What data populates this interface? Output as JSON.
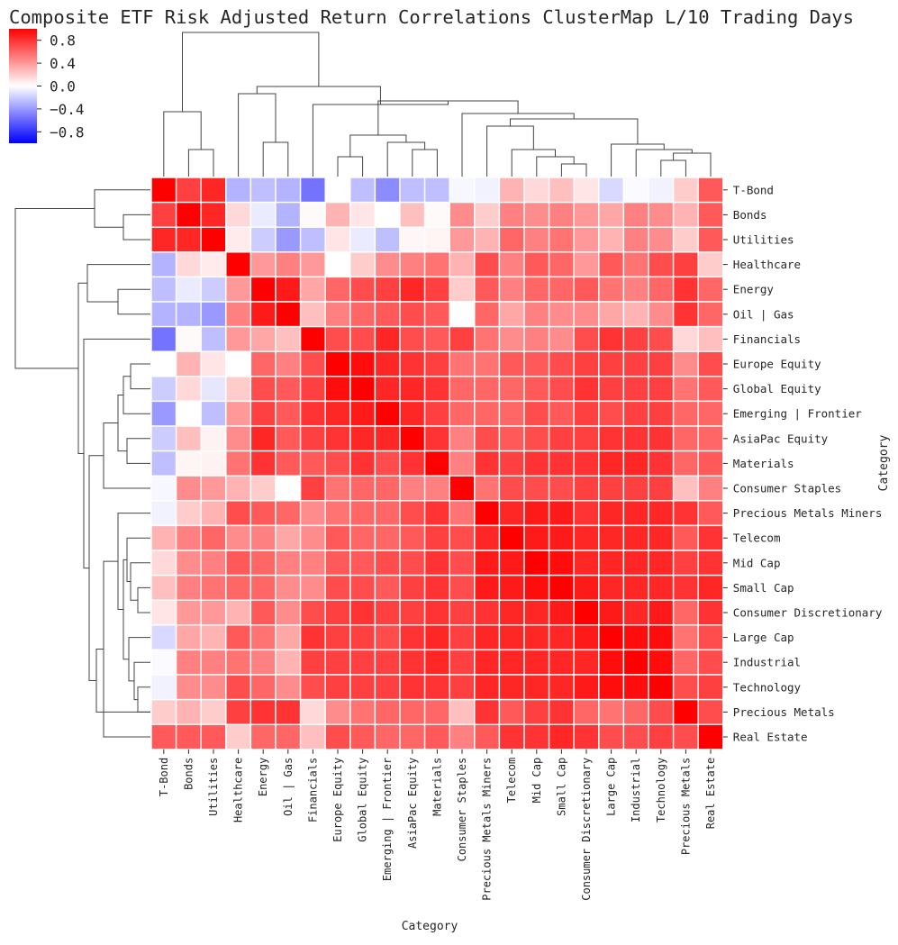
{
  "chart_data": {
    "type": "heatmap",
    "title": "Composite ETF Risk Adjusted Return Correlations ClusterMap L/10 Trading Days",
    "xlabel": "Category",
    "ylabel": "Category",
    "colormap": "bwr",
    "colors": {
      "negative": "#0000ff",
      "neutral": "#ffffff",
      "positive": "#ff0000",
      "grid": "#ffffff",
      "dendrogram": "#444444"
    },
    "value_range": [
      -1,
      1
    ],
    "colorbar_ticks": [
      0.8,
      0.4,
      0.0,
      -0.4,
      -0.8
    ],
    "colorbar_tick_labels": [
      "0.8",
      "0.4",
      "0.0",
      "−0.4",
      "−0.8"
    ],
    "row_dendrogram_order_note": "rows and columns share the same clustered order",
    "categories": [
      "T-Bond",
      "Bonds",
      "Utilities",
      "Healthcare",
      "Energy",
      "Oil | Gas",
      "Financials",
      "Europe Equity",
      "Global Equity",
      "Emerging | Frontier",
      "AsiaPac Equity",
      "Materials",
      "Consumer Staples",
      "Precious Metals Miners",
      "Telecom",
      "Mid Cap",
      "Small Cap",
      "Consumer Discretionary",
      "Large Cap",
      "Industrial",
      "Technology",
      "Precious Metals",
      "Real Estate"
    ],
    "values": [
      [
        1.0,
        0.75,
        0.85,
        -0.3,
        -0.25,
        -0.3,
        -0.55,
        0.0,
        -0.25,
        -0.45,
        -0.25,
        -0.25,
        -0.03,
        -0.05,
        0.3,
        0.15,
        0.25,
        0.1,
        -0.15,
        -0.02,
        -0.05,
        0.2,
        0.65
      ],
      [
        0.75,
        1.0,
        0.85,
        0.15,
        -0.08,
        -0.3,
        0.02,
        0.3,
        0.1,
        0.0,
        0.25,
        0.02,
        0.45,
        0.2,
        0.5,
        0.45,
        0.5,
        0.4,
        0.35,
        0.5,
        0.45,
        0.3,
        0.65
      ],
      [
        0.85,
        0.85,
        1.0,
        0.08,
        -0.2,
        -0.4,
        -0.25,
        0.1,
        -0.08,
        -0.25,
        0.03,
        0.04,
        0.4,
        0.3,
        0.6,
        0.5,
        0.55,
        0.4,
        0.3,
        0.5,
        0.45,
        0.2,
        0.65
      ],
      [
        -0.3,
        0.15,
        0.08,
        1.0,
        0.4,
        0.5,
        0.4,
        0.0,
        0.2,
        0.45,
        0.5,
        0.55,
        0.3,
        0.7,
        0.5,
        0.65,
        0.6,
        0.4,
        0.65,
        0.55,
        0.7,
        0.75,
        0.2
      ],
      [
        -0.25,
        -0.08,
        -0.2,
        0.4,
        1.0,
        0.9,
        0.35,
        0.6,
        0.7,
        0.75,
        0.85,
        0.75,
        0.2,
        0.65,
        0.5,
        0.6,
        0.6,
        0.65,
        0.55,
        0.5,
        0.6,
        0.8,
        0.6
      ],
      [
        -0.3,
        -0.3,
        -0.4,
        0.5,
        0.9,
        1.0,
        0.25,
        0.5,
        0.6,
        0.65,
        0.7,
        0.65,
        0.0,
        0.6,
        0.35,
        0.5,
        0.45,
        0.45,
        0.35,
        0.3,
        0.45,
        0.8,
        0.6
      ],
      [
        -0.55,
        0.02,
        -0.25,
        0.4,
        0.35,
        0.25,
        1.0,
        0.7,
        0.7,
        0.85,
        0.7,
        0.65,
        0.75,
        0.55,
        0.45,
        0.5,
        0.45,
        0.7,
        0.8,
        0.75,
        0.7,
        0.15,
        0.25
      ],
      [
        0.0,
        0.3,
        0.1,
        0.0,
        0.6,
        0.5,
        0.7,
        1.0,
        0.95,
        0.85,
        0.8,
        0.75,
        0.55,
        0.55,
        0.65,
        0.65,
        0.7,
        0.75,
        0.75,
        0.75,
        0.75,
        0.45,
        0.7
      ],
      [
        -0.2,
        0.15,
        -0.1,
        0.2,
        0.7,
        0.65,
        0.75,
        0.95,
        1.0,
        0.85,
        0.85,
        0.8,
        0.6,
        0.6,
        0.6,
        0.65,
        0.7,
        0.8,
        0.75,
        0.75,
        0.75,
        0.55,
        0.65
      ],
      [
        -0.4,
        0.0,
        -0.25,
        0.4,
        0.75,
        0.65,
        0.8,
        0.85,
        0.9,
        1.0,
        0.85,
        0.75,
        0.6,
        0.6,
        0.6,
        0.7,
        0.65,
        0.75,
        0.7,
        0.75,
        0.75,
        0.6,
        0.6
      ],
      [
        -0.2,
        0.25,
        0.05,
        0.45,
        0.85,
        0.65,
        0.75,
        0.8,
        0.85,
        0.85,
        1.0,
        0.8,
        0.5,
        0.7,
        0.65,
        0.7,
        0.75,
        0.75,
        0.8,
        0.8,
        0.8,
        0.6,
        0.6
      ],
      [
        -0.25,
        0.04,
        0.05,
        0.55,
        0.8,
        0.65,
        0.65,
        0.7,
        0.8,
        0.7,
        0.8,
        1.0,
        0.5,
        0.8,
        0.75,
        0.8,
        0.8,
        0.8,
        0.85,
        0.85,
        0.8,
        0.6,
        0.65
      ],
      [
        -0.03,
        0.45,
        0.4,
        0.3,
        0.2,
        0.0,
        0.75,
        0.55,
        0.6,
        0.6,
        0.5,
        0.5,
        1.0,
        0.55,
        0.7,
        0.7,
        0.7,
        0.75,
        0.75,
        0.75,
        0.75,
        0.25,
        0.5
      ],
      [
        -0.05,
        0.2,
        0.3,
        0.7,
        0.65,
        0.6,
        0.45,
        0.55,
        0.6,
        0.6,
        0.7,
        0.8,
        0.55,
        1.0,
        0.85,
        0.9,
        0.9,
        0.8,
        0.85,
        0.85,
        0.85,
        0.8,
        0.65
      ],
      [
        0.3,
        0.5,
        0.6,
        0.45,
        0.5,
        0.35,
        0.45,
        0.65,
        0.6,
        0.6,
        0.65,
        0.75,
        0.7,
        0.85,
        1.0,
        0.9,
        0.9,
        0.85,
        0.85,
        0.85,
        0.85,
        0.65,
        0.8
      ],
      [
        0.15,
        0.45,
        0.5,
        0.65,
        0.6,
        0.5,
        0.5,
        0.65,
        0.65,
        0.7,
        0.7,
        0.8,
        0.7,
        0.9,
        0.9,
        1.0,
        0.95,
        0.85,
        0.85,
        0.85,
        0.85,
        0.75,
        0.8
      ],
      [
        0.25,
        0.5,
        0.55,
        0.6,
        0.6,
        0.45,
        0.45,
        0.7,
        0.7,
        0.65,
        0.75,
        0.8,
        0.7,
        0.9,
        0.9,
        0.95,
        1.0,
        0.9,
        0.85,
        0.85,
        0.85,
        0.8,
        0.85
      ],
      [
        0.1,
        0.4,
        0.4,
        0.3,
        0.65,
        0.45,
        0.7,
        0.75,
        0.8,
        0.75,
        0.75,
        0.8,
        0.75,
        0.8,
        0.85,
        0.85,
        0.9,
        1.0,
        0.9,
        0.85,
        0.9,
        0.6,
        0.8
      ],
      [
        -0.15,
        0.35,
        0.3,
        0.65,
        0.55,
        0.35,
        0.8,
        0.75,
        0.75,
        0.7,
        0.8,
        0.85,
        0.75,
        0.85,
        0.85,
        0.85,
        0.85,
        0.9,
        1.0,
        0.95,
        0.95,
        0.55,
        0.7
      ],
      [
        -0.02,
        0.5,
        0.5,
        0.55,
        0.5,
        0.3,
        0.75,
        0.75,
        0.75,
        0.75,
        0.8,
        0.85,
        0.75,
        0.85,
        0.85,
        0.85,
        0.85,
        0.85,
        0.95,
        1.0,
        0.95,
        0.6,
        0.7
      ],
      [
        -0.05,
        0.45,
        0.45,
        0.7,
        0.6,
        0.45,
        0.7,
        0.75,
        0.75,
        0.75,
        0.8,
        0.8,
        0.75,
        0.85,
        0.85,
        0.85,
        0.85,
        0.9,
        0.95,
        0.95,
        1.0,
        0.7,
        0.75
      ],
      [
        0.2,
        0.3,
        0.2,
        0.75,
        0.8,
        0.8,
        0.15,
        0.45,
        0.55,
        0.6,
        0.6,
        0.6,
        0.25,
        0.8,
        0.65,
        0.75,
        0.8,
        0.6,
        0.55,
        0.6,
        0.7,
        1.0,
        0.7
      ],
      [
        0.65,
        0.65,
        0.65,
        0.2,
        0.6,
        0.6,
        0.25,
        0.7,
        0.65,
        0.6,
        0.6,
        0.65,
        0.5,
        0.65,
        0.8,
        0.8,
        0.85,
        0.8,
        0.7,
        0.7,
        0.75,
        0.7,
        1.0
      ]
    ]
  }
}
